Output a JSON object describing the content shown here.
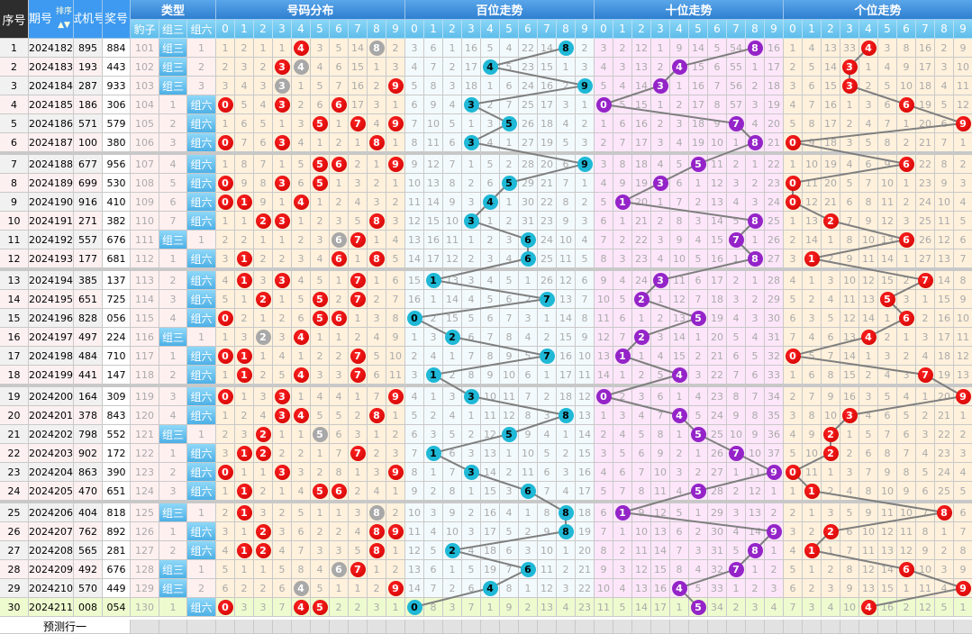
{
  "header": {
    "seq": "序号",
    "issue": "期号",
    "sort": "排序",
    "trial": "试机号",
    "draw": "奖号",
    "type_group": "类型",
    "types": [
      "豹子",
      "组三",
      "组六"
    ],
    "sections": [
      "号码分布",
      "百位走势",
      "十位走势",
      "个位走势"
    ],
    "digits": [
      "0",
      "1",
      "2",
      "3",
      "4",
      "5",
      "6",
      "7",
      "8",
      "9"
    ]
  },
  "type_labels": {
    "zu3": "组三",
    "zu6": "组六"
  },
  "rows": [
    {
      "seq": "1",
      "issue": "2024182",
      "trial": "895",
      "draw": "884"
    },
    {
      "seq": "2",
      "issue": "2024183",
      "trial": "193",
      "draw": "443"
    },
    {
      "seq": "3",
      "issue": "2024184",
      "trial": "287",
      "draw": "933"
    },
    {
      "seq": "4",
      "issue": "2024185",
      "trial": "186",
      "draw": "306"
    },
    {
      "seq": "5",
      "issue": "2024186",
      "trial": "571",
      "draw": "579"
    },
    {
      "seq": "6",
      "issue": "2024187",
      "trial": "100",
      "draw": "380"
    },
    {
      "seq": "7",
      "issue": "2024188",
      "trial": "677",
      "draw": "956"
    },
    {
      "seq": "8",
      "issue": "2024189",
      "trial": "699",
      "draw": "530"
    },
    {
      "seq": "9",
      "issue": "2024190",
      "trial": "916",
      "draw": "410"
    },
    {
      "seq": "10",
      "issue": "2024191",
      "trial": "271",
      "draw": "382"
    },
    {
      "seq": "11",
      "issue": "2024192",
      "trial": "557",
      "draw": "676"
    },
    {
      "seq": "12",
      "issue": "2024193",
      "trial": "177",
      "draw": "681"
    },
    {
      "seq": "13",
      "issue": "2024194",
      "trial": "385",
      "draw": "137"
    },
    {
      "seq": "14",
      "issue": "2024195",
      "trial": "651",
      "draw": "725"
    },
    {
      "seq": "15",
      "issue": "2024196",
      "trial": "828",
      "draw": "056"
    },
    {
      "seq": "16",
      "issue": "2024197",
      "trial": "497",
      "draw": "224"
    },
    {
      "seq": "17",
      "issue": "2024198",
      "trial": "484",
      "draw": "710"
    },
    {
      "seq": "18",
      "issue": "2024199",
      "trial": "441",
      "draw": "147"
    },
    {
      "seq": "19",
      "issue": "2024200",
      "trial": "164",
      "draw": "309"
    },
    {
      "seq": "20",
      "issue": "2024201",
      "trial": "378",
      "draw": "843"
    },
    {
      "seq": "21",
      "issue": "2024202",
      "trial": "798",
      "draw": "552"
    },
    {
      "seq": "22",
      "issue": "2024203",
      "trial": "902",
      "draw": "172"
    },
    {
      "seq": "23",
      "issue": "2024204",
      "trial": "863",
      "draw": "390"
    },
    {
      "seq": "24",
      "issue": "2024205",
      "trial": "470",
      "draw": "651"
    },
    {
      "seq": "25",
      "issue": "2024206",
      "trial": "404",
      "draw": "818"
    },
    {
      "seq": "26",
      "issue": "2024207",
      "trial": "762",
      "draw": "892"
    },
    {
      "seq": "27",
      "issue": "2024208",
      "trial": "565",
      "draw": "281"
    },
    {
      "seq": "28",
      "issue": "2024209",
      "trial": "492",
      "draw": "676"
    },
    {
      "seq": "29",
      "issue": "2024210",
      "trial": "570",
      "draw": "449"
    },
    {
      "seq": "30",
      "issue": "2024211",
      "trial": "008",
      "draw": "054"
    }
  ],
  "first_row": {
    "baozi": 101,
    "zu6": 1,
    "dist": [
      1,
      2,
      1,
      1,
      4,
      3,
      5,
      14,
      8,
      2
    ],
    "bai": [
      3,
      6,
      1,
      16,
      5,
      4,
      22,
      14,
      8,
      2
    ],
    "shi": [
      3,
      2,
      12,
      1,
      9,
      14,
      5,
      54,
      8,
      16
    ],
    "ge": [
      1,
      4,
      13,
      33,
      4,
      3,
      8,
      16,
      2,
      9
    ]
  },
  "predict_label": "预测行一",
  "colors": {
    "red_ball": "#d40000",
    "grey_ball": "#a8a8a8",
    "bai_ball": "#1fb8d6",
    "shi_ball": "#9424c8",
    "ge_ball": "#d40000",
    "line": "#7f7f7f",
    "latest_row": "#eefbcf"
  }
}
